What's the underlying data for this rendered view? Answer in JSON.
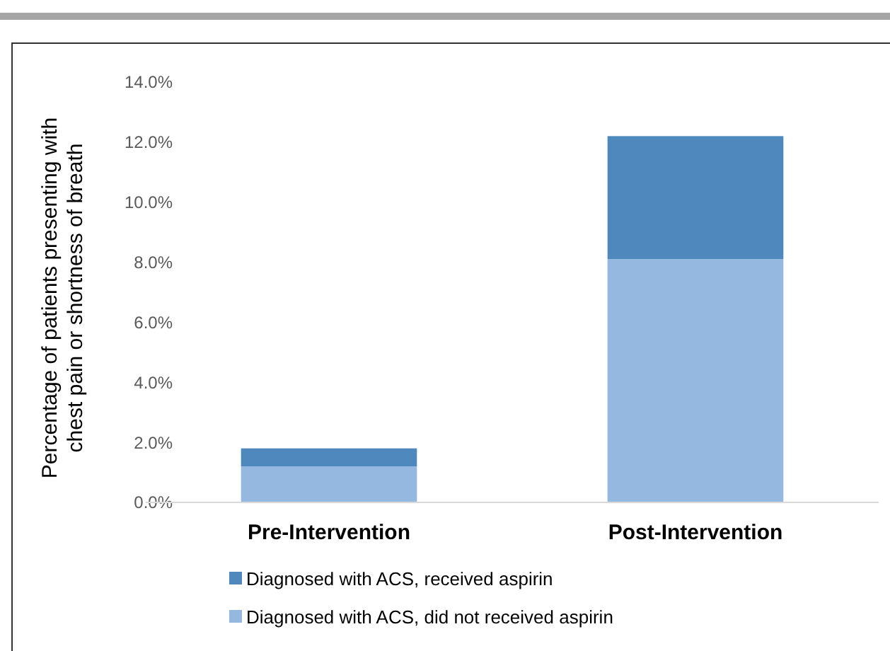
{
  "chart_data": {
    "type": "bar",
    "stacked": true,
    "ylabel": "Percentage of patients presenting with\nchest pain or shortness of breath",
    "categories": [
      "Pre-Intervention",
      "Post-Intervention"
    ],
    "series": [
      {
        "name": "Diagnosed with ACS, did not received aspirin",
        "color": "#95b8e0",
        "values": [
          1.2,
          8.1
        ]
      },
      {
        "name": "Diagnosed with ACS, received aspirin",
        "color": "#4f88bd",
        "values": [
          0.6,
          4.1
        ]
      }
    ],
    "ylim": [
      0,
      14
    ],
    "yticks": [
      {
        "value": 0,
        "label": "0.0%"
      },
      {
        "value": 2,
        "label": "2.0%"
      },
      {
        "value": 4,
        "label": "4.0%"
      },
      {
        "value": 6,
        "label": "6.0%"
      },
      {
        "value": 8,
        "label": "8.0%"
      },
      {
        "value": 10,
        "label": "10.0%"
      },
      {
        "value": 12,
        "label": "12.0%"
      },
      {
        "value": 14,
        "label": "14.0%"
      }
    ],
    "grid": false,
    "legend": "bottom"
  }
}
